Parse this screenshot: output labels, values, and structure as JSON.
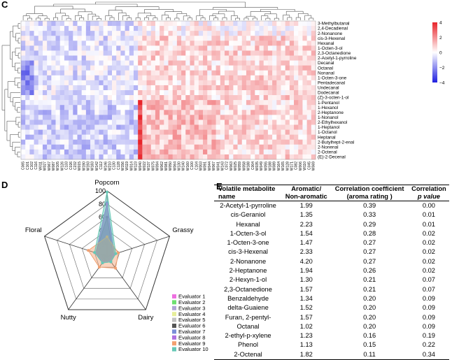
{
  "panels": {
    "c": "C",
    "d": "D",
    "e": "E"
  },
  "heatmap": {
    "rows": [
      "3-Methylbutanal",
      "2,4-Decadienal",
      "2-Nonanone",
      "cis-3-Hexenal",
      "Hexanal",
      "1-Octen-3-ol",
      "2,3-Octanedione",
      "2-Acetyl-1-pyrroline",
      "Decanal",
      "Octanal",
      "Nonanal",
      "1-Octen-3-one",
      "Pentadecanal",
      "Undecanal",
      "Dodecanal",
      "(Z)-3-octen-1-ol",
      "1-Pentanol",
      "1-Hexanol",
      "2-Heptanone",
      "1-Nonanol",
      "2-Ethylhexanol",
      "1-Heptanol",
      "1-Octanol",
      "Heptanal",
      "2-Butylhept-2-enal",
      "2-Nonenal",
      "2-Octenal",
      "(E)-2-Decenal"
    ],
    "cols": [
      "C065",
      "C101",
      "C102",
      "C116",
      "W011",
      "W027",
      "W067",
      "W087",
      "W105",
      "W126",
      "C133",
      "C026",
      "C232",
      "W015",
      "W190",
      "W193",
      "W183",
      "W142",
      "C112",
      "W146",
      "W210",
      "C130",
      "C128",
      "W156",
      "W119",
      "W014",
      "W123",
      "W040",
      "W022",
      "W137",
      "W075",
      "W094",
      "W062",
      "W081",
      "W050",
      "W064",
      "W130",
      "W140",
      "W160",
      "C100",
      "C104",
      "W003",
      "W091",
      "W044",
      "W067",
      "W041",
      "W143",
      "C072",
      "W063",
      "W025",
      "W059",
      "W058",
      "W188",
      "C004",
      "W035",
      "W049",
      "W055",
      "W188",
      "W089",
      "W164",
      "W165",
      "W128",
      "W171",
      "C082",
      "W006",
      "W110",
      "C045",
      "W069"
    ],
    "scale": {
      "max_label": "4",
      "ticks": [
        "4",
        "2",
        "0",
        "−2",
        "−4"
      ],
      "min": -4,
      "max": 4,
      "colors": {
        "high": "#e8242a",
        "mid": "#ffffff",
        "low": "#1f1fe0"
      }
    }
  },
  "chart_data": {
    "type": "radar",
    "axes": [
      "Popcorn",
      "Grassy",
      "Dairy",
      "Nutty",
      "Floral"
    ],
    "rlim": [
      0,
      100
    ],
    "radial_ticks": [
      "0",
      "20",
      "40",
      "60",
      "80",
      "100"
    ],
    "series": [
      {
        "name": "Evaluator 1",
        "color": "#ee70e0",
        "values": [
          80,
          10,
          8,
          10,
          18
        ]
      },
      {
        "name": "Evaluator 2",
        "color": "#6ee070",
        "values": [
          82,
          12,
          8,
          10,
          18
        ]
      },
      {
        "name": "Evaluator 3",
        "color": "#b0a6d6",
        "values": [
          78,
          10,
          8,
          10,
          18
        ]
      },
      {
        "name": "Evaluator 4",
        "color": "#e6ee9a",
        "values": [
          80,
          12,
          10,
          12,
          18
        ]
      },
      {
        "name": "Evaluator 5",
        "color": "#c2c2c2",
        "values": [
          76,
          10,
          8,
          10,
          18
        ]
      },
      {
        "name": "Evaluator 6",
        "color": "#555555",
        "values": [
          60,
          10,
          8,
          10,
          18
        ]
      },
      {
        "name": "Evaluator 7",
        "color": "#7a8ed8",
        "values": [
          82,
          12,
          10,
          12,
          18
        ]
      },
      {
        "name": "Evaluator 8",
        "color": "#b070e0",
        "values": [
          80,
          10,
          8,
          10,
          18
        ]
      },
      {
        "name": "Evaluator 9",
        "color": "#f2a070",
        "values": [
          30,
          18,
          22,
          20,
          30
        ]
      },
      {
        "name": "Evaluator 10",
        "color": "#66c8b6",
        "values": [
          98,
          14,
          10,
          12,
          20
        ]
      }
    ]
  },
  "table": {
    "headers": [
      {
        "line1": "Volatile metabolite",
        "line2": "name"
      },
      {
        "line1": "Aromatic/",
        "line2": "Non-aromatic"
      },
      {
        "line1": "Correlation coefficient",
        "line2": "(aroma rating )"
      },
      {
        "line1": "Correlation",
        "line2": "p value"
      }
    ],
    "rows": [
      [
        "2-Acetyl-1-pyrroline",
        "1.99",
        "0.39",
        "0.00"
      ],
      [
        "cis-Geraniol",
        "1.35",
        "0.33",
        "0.01"
      ],
      [
        "Hexanal",
        "2.23",
        "0.29",
        "0.01"
      ],
      [
        "1-Octen-3-ol",
        "1.54",
        "0.28",
        "0.02"
      ],
      [
        "1-Octen-3-one",
        "1.47",
        "0.27",
        "0.02"
      ],
      [
        "cis-3-Hexenal",
        "2.33",
        "0.27",
        "0.02"
      ],
      [
        "2-Nonanone",
        "4.20",
        "0.27",
        "0.02"
      ],
      [
        "2-Heptanone",
        "1.94",
        "0.26",
        "0.02"
      ],
      [
        "2-Hexyn-1-ol",
        "1.30",
        "0.21",
        "0.07"
      ],
      [
        "2,3-Octanedione",
        "1.57",
        "0.21",
        "0.07"
      ],
      [
        "Benzaldehyde",
        "1.34",
        "0.20",
        "0.09"
      ],
      [
        "delta-Guaiene",
        "1.52",
        "0.20",
        "0.09"
      ],
      [
        "Furan, 2-pentyl-",
        "1.57",
        "0.20",
        "0.09"
      ],
      [
        "Octanal",
        "1.02",
        "0.20",
        "0.09"
      ],
      [
        "2-ethyl-p-xylene",
        "1.23",
        "0.16",
        "0.19"
      ],
      [
        "Phenol",
        "1.13",
        "0.15",
        "0.22"
      ],
      [
        "2-Octenal",
        "1.82",
        "0.11",
        "0.34"
      ]
    ]
  }
}
